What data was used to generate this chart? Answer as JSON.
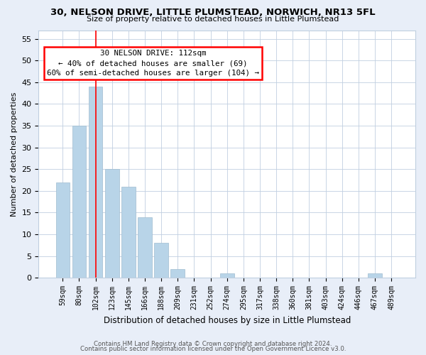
{
  "title": "30, NELSON DRIVE, LITTLE PLUMSTEAD, NORWICH, NR13 5FL",
  "subtitle": "Size of property relative to detached houses in Little Plumstead",
  "xlabel": "Distribution of detached houses by size in Little Plumstead",
  "ylabel": "Number of detached properties",
  "bar_labels": [
    "59sqm",
    "80sqm",
    "102sqm",
    "123sqm",
    "145sqm",
    "166sqm",
    "188sqm",
    "209sqm",
    "231sqm",
    "252sqm",
    "274sqm",
    "295sqm",
    "317sqm",
    "338sqm",
    "360sqm",
    "381sqm",
    "403sqm",
    "424sqm",
    "446sqm",
    "467sqm",
    "489sqm"
  ],
  "bar_values": [
    22,
    35,
    44,
    25,
    21,
    14,
    8,
    2,
    0,
    0,
    1,
    0,
    0,
    0,
    0,
    0,
    0,
    0,
    0,
    1,
    0
  ],
  "bar_color": "#b8d4e8",
  "vline_x": 2.5,
  "vline_color": "red",
  "ylim": [
    0,
    57
  ],
  "yticks": [
    0,
    5,
    10,
    15,
    20,
    25,
    30,
    35,
    40,
    45,
    50,
    55
  ],
  "annotation_line1": "30 NELSON DRIVE: 112sqm",
  "annotation_line2": "← 40% of detached houses are smaller (69)",
  "annotation_line3": "60% of semi-detached houses are larger (104) →",
  "footer_line1": "Contains HM Land Registry data © Crown copyright and database right 2024.",
  "footer_line2": "Contains public sector information licensed under the Open Government Licence v3.0.",
  "bg_color": "#e8eef8",
  "plot_bg_color": "#ffffff",
  "grid_color": "#c0cfe0"
}
